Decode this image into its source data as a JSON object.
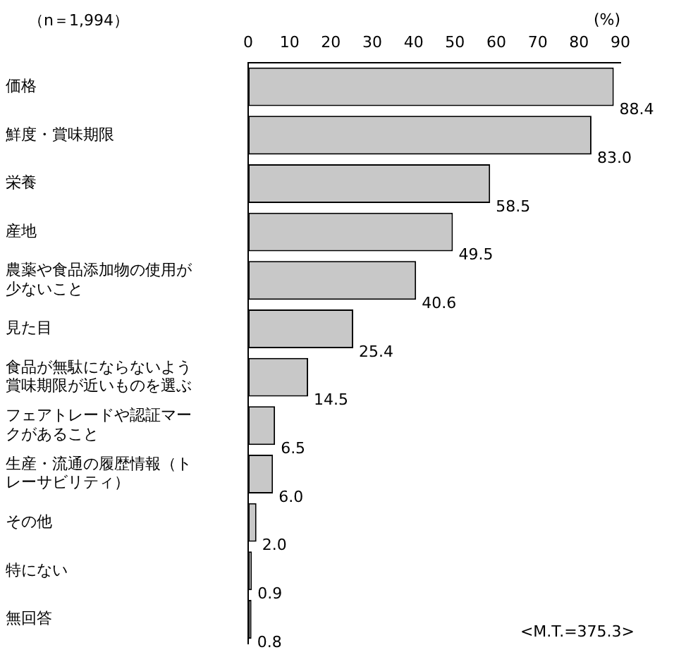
{
  "chart_data": {
    "type": "bar",
    "orientation": "horizontal",
    "xlabel": "(%)",
    "annotations": [
      "（n＝1,994）",
      "<M.T.=375.3>"
    ],
    "categories": [
      "価格",
      "鮮度・賞味期限",
      "栄養",
      "産地",
      "農薬や食品添加物の使用が少ないこと",
      "見た目",
      "食品が無駄にならないよう賞味期限が近いものを選ぶ",
      "フェアトレードや認証マークがあること",
      "生産・流通の履歴情報（トレーサビリティ）",
      "その他",
      "特にない",
      "無回答"
    ],
    "values": [
      88.4,
      83.0,
      58.5,
      49.5,
      40.6,
      25.4,
      14.5,
      6.5,
      6.0,
      2.0,
      0.9,
      0.8
    ],
    "value_labels": [
      "88.4",
      "83.0",
      "58.5",
      "49.5",
      "40.6",
      "25.4",
      "14.5",
      "6.5",
      "6.0",
      "2.0",
      "0.9",
      "0.8"
    ],
    "color": "#c8c8c8",
    "xlim": [
      0,
      90
    ],
    "xticks": [
      0,
      10,
      20,
      30,
      40,
      50,
      60,
      70,
      80,
      90
    ],
    "grid": false,
    "legend": false
  }
}
